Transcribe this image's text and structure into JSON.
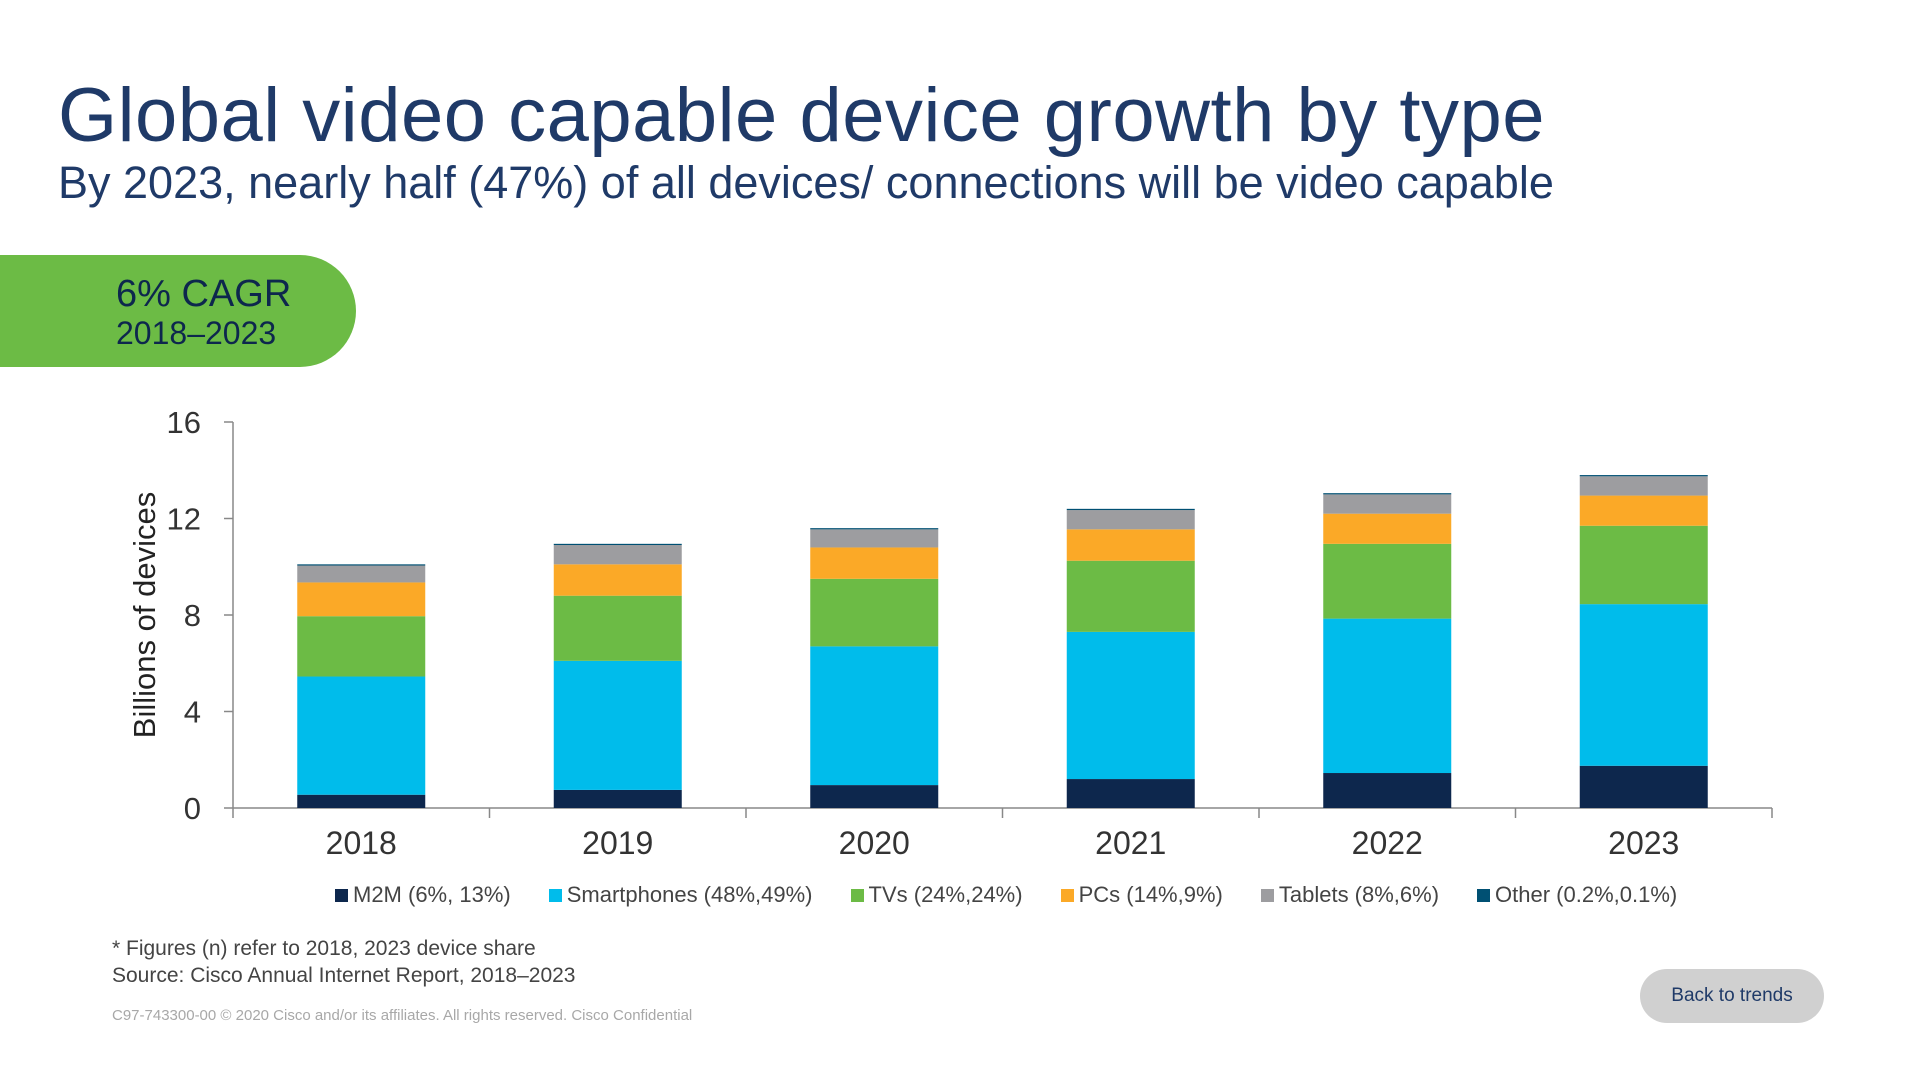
{
  "header": {
    "title": "Global video capable device growth by type",
    "subtitle": "By 2023, nearly half (47%) of all devices/ connections will be video capable"
  },
  "badge": {
    "main": "6% CAGR",
    "years": "2018–2023",
    "color": "#6cbb45"
  },
  "chart_data": {
    "type": "bar",
    "stacked": true,
    "categories": [
      "2018",
      "2019",
      "2020",
      "2021",
      "2022",
      "2023"
    ],
    "ylabel": "Billions of devices",
    "xlabel": "",
    "ylim": [
      0,
      16
    ],
    "yticks": [
      0,
      4,
      8,
      12,
      16
    ],
    "grid": false,
    "legend_position": "bottom",
    "series": [
      {
        "name": "M2M (6%, 13%)",
        "color": "#0d274d",
        "values": [
          0.55,
          0.75,
          0.95,
          1.2,
          1.45,
          1.75
        ]
      },
      {
        "name": "Smartphones (48%,49%)",
        "color": "#00bceb",
        "values": [
          4.9,
          5.35,
          5.75,
          6.1,
          6.4,
          6.7
        ]
      },
      {
        "name": "TVs (24%,24%)",
        "color": "#6cbb45",
        "values": [
          2.5,
          2.7,
          2.8,
          2.95,
          3.1,
          3.25
        ]
      },
      {
        "name": "PCs (14%,9%)",
        "color": "#fba927",
        "values": [
          1.4,
          1.3,
          1.3,
          1.3,
          1.25,
          1.25
        ]
      },
      {
        "name": "Tablets (8%,6%)",
        "color": "#9d9da0",
        "values": [
          0.7,
          0.8,
          0.75,
          0.8,
          0.8,
          0.8
        ]
      },
      {
        "name": "Other (0.2%,0.1%)",
        "color": "#005073",
        "values": [
          0.05,
          0.05,
          0.05,
          0.05,
          0.05,
          0.05
        ]
      }
    ]
  },
  "footnote": {
    "line1": "* Figures (n) refer to 2018, 2023 device share",
    "line2": "Source: Cisco Annual Internet Report, 2018–2023"
  },
  "copyright": "C97-743300-00 © 2020  Cisco and/or its affiliates. All rights reserved.    Cisco Confidential",
  "nav": {
    "back_label": "Back to trends"
  }
}
